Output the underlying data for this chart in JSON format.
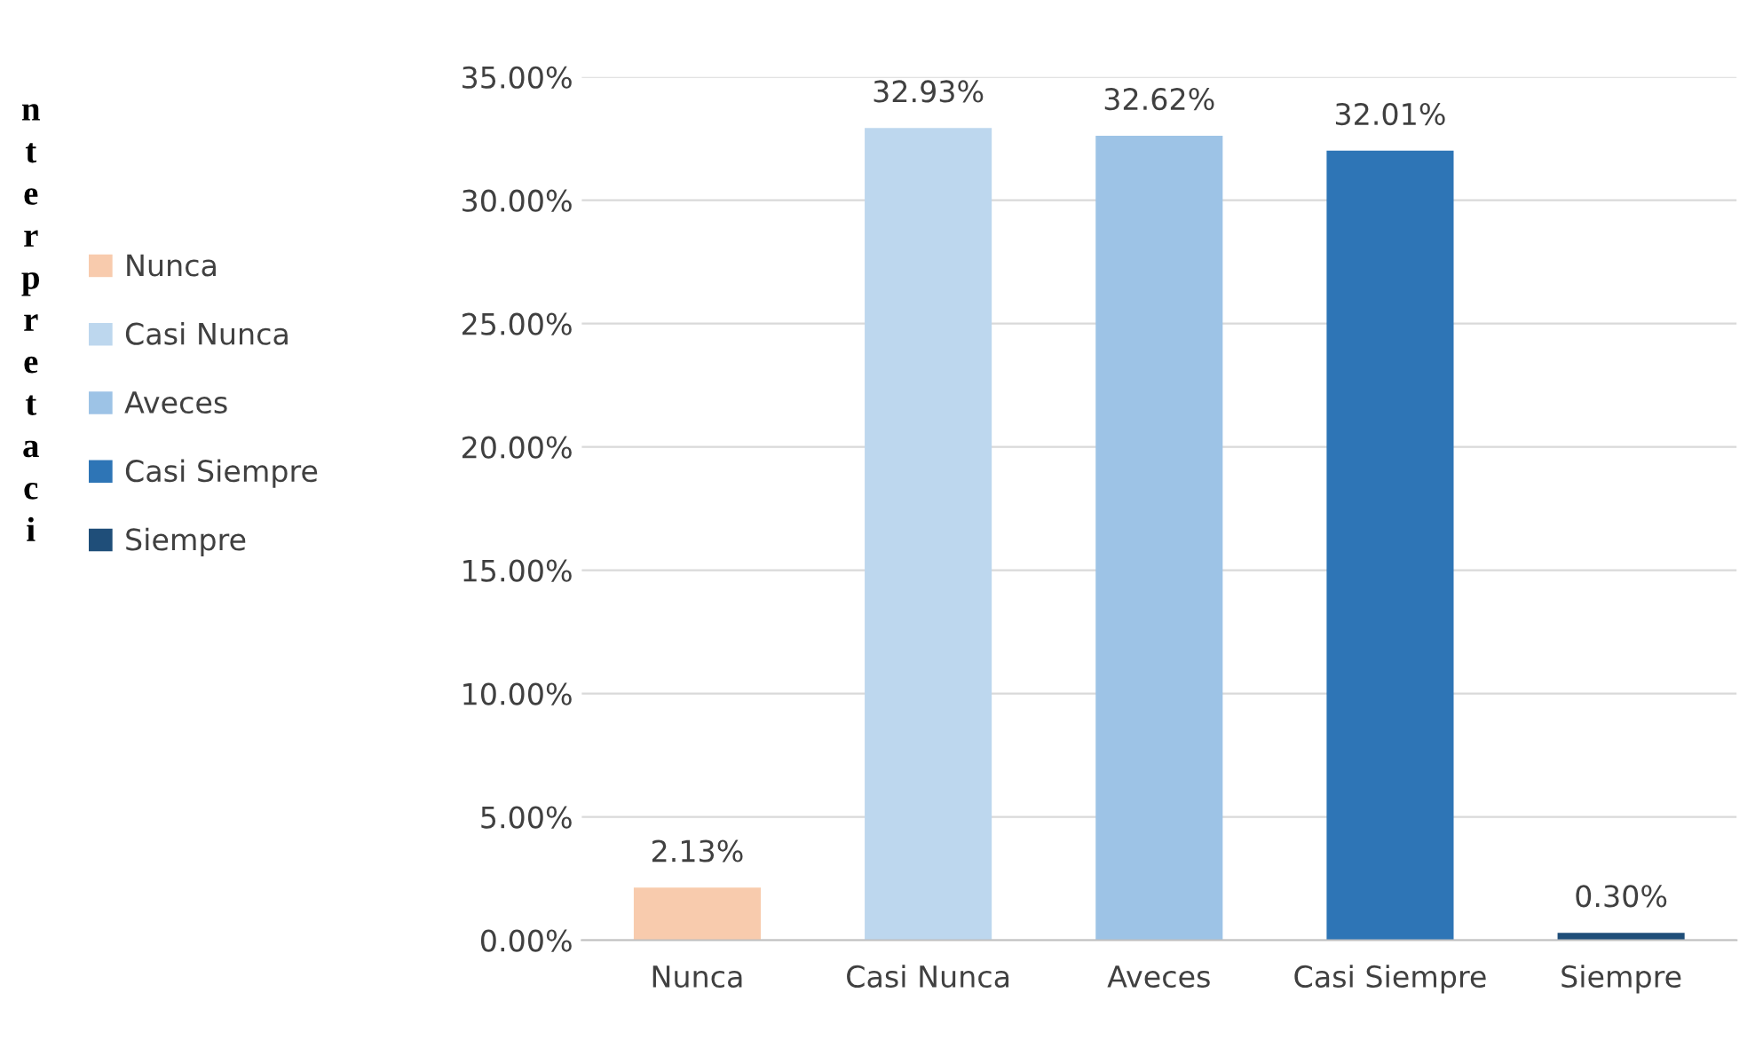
{
  "chart_data": {
    "type": "bar",
    "categories": [
      "Nunca",
      "Casi Nunca",
      "Aveces",
      "Casi Siempre",
      "Siempre"
    ],
    "series": [
      {
        "name": "Nunca",
        "color": "#f8cbad",
        "values": [
          2.13,
          null,
          null,
          null,
          null
        ],
        "value_labels": [
          "2.13%",
          null,
          null,
          null,
          null
        ]
      },
      {
        "name": "Casi Nunca",
        "color": "#bdd7ee",
        "values": [
          null,
          32.93,
          null,
          null,
          null
        ],
        "value_labels": [
          null,
          "32.93%",
          null,
          null,
          null
        ]
      },
      {
        "name": "Aveces",
        "color": "#9dc3e6",
        "values": [
          null,
          null,
          32.62,
          null,
          null
        ],
        "value_labels": [
          null,
          null,
          "32.62%",
          null,
          null
        ]
      },
      {
        "name": "Casi Siempre",
        "color": "#2e75b6",
        "values": [
          null,
          null,
          null,
          32.01,
          null
        ],
        "value_labels": [
          null,
          null,
          null,
          "32.01%",
          null
        ]
      },
      {
        "name": "Siempre",
        "color": "#1f4e79",
        "values": [
          null,
          null,
          null,
          null,
          0.3
        ],
        "value_labels": [
          null,
          null,
          null,
          null,
          "0.30%"
        ]
      }
    ],
    "ylim": [
      0,
      35
    ],
    "yticks": [
      {
        "value": 0,
        "label": "0.00%"
      },
      {
        "value": 5,
        "label": "5.00%"
      },
      {
        "value": 10,
        "label": "10.00%"
      },
      {
        "value": 15,
        "label": "15.00%"
      },
      {
        "value": 20,
        "label": "20.00%"
      },
      {
        "value": 25,
        "label": "25.00%"
      },
      {
        "value": 30,
        "label": "30.00%"
      },
      {
        "value": 35,
        "label": "35.00%"
      }
    ],
    "grid": "y",
    "legend": "left",
    "annotations": [
      "nterpretaci"
    ]
  }
}
